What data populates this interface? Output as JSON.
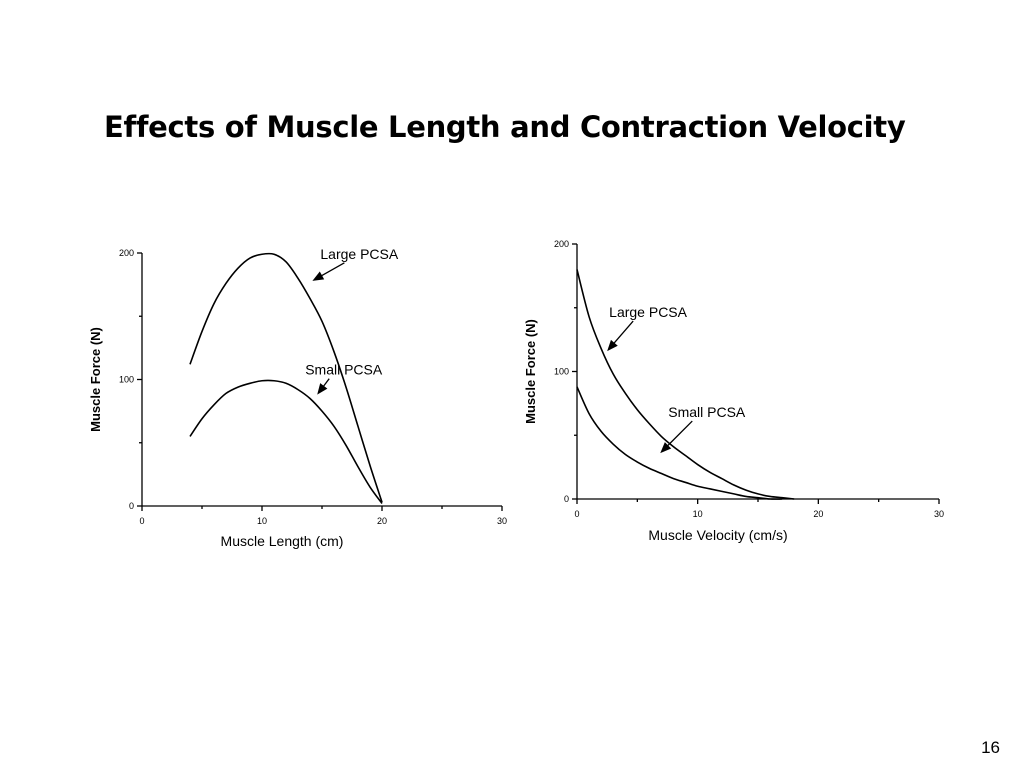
{
  "slide": {
    "title": "Effects of Muscle Length and Contraction Velocity",
    "page_number": "16"
  },
  "chart_data": [
    {
      "type": "line",
      "xlabel": "Muscle Length (cm)",
      "ylabel": "Muscle Force (N)",
      "xlim": [
        0,
        30
      ],
      "ylim": [
        0,
        200
      ],
      "xticks": [
        0,
        10,
        20,
        30
      ],
      "yticks": [
        0,
        100,
        200
      ],
      "grid": false,
      "series": [
        {
          "name": "Large PCSA",
          "x": [
            4,
            5,
            6,
            7,
            8,
            9,
            10,
            11,
            12,
            13,
            14,
            15,
            16,
            17,
            18,
            19,
            20
          ],
          "y": [
            112,
            138,
            160,
            176,
            188,
            196,
            199,
            199,
            193,
            180,
            164,
            146,
            122,
            94,
            63,
            32,
            3
          ]
        },
        {
          "name": "Small PCSA",
          "x": [
            4,
            5,
            6,
            7,
            8,
            9,
            10,
            11,
            12,
            13,
            14,
            15,
            16,
            17,
            18,
            19,
            20
          ],
          "y": [
            55,
            69,
            80,
            89,
            94,
            97,
            99,
            99,
            97,
            92,
            85,
            75,
            63,
            48,
            31,
            15,
            2
          ]
        }
      ],
      "annotations": [
        {
          "text": "Large PCSA",
          "series": "Large PCSA",
          "x": 14.2,
          "y": 178
        },
        {
          "text": "Small PCSA",
          "series": "Small PCSA",
          "x": 14.6,
          "y": 88
        }
      ]
    },
    {
      "type": "line",
      "xlabel": "Muscle Velocity (cm/s)",
      "ylabel": "Muscle Force (N)",
      "xlim": [
        0,
        30
      ],
      "ylim": [
        0,
        200
      ],
      "xticks": [
        0,
        10,
        20,
        30
      ],
      "yticks": [
        0,
        100,
        200
      ],
      "grid": false,
      "series": [
        {
          "name": "Large PCSA",
          "x": [
            0,
            1,
            2,
            3,
            4,
            5,
            6,
            7,
            8,
            9,
            10,
            11,
            12,
            13,
            14,
            15,
            16,
            17,
            18
          ],
          "y": [
            180,
            143,
            118,
            98,
            83,
            70,
            59,
            49,
            41,
            34,
            27,
            21,
            16,
            11,
            7,
            4,
            2,
            1,
            0
          ]
        },
        {
          "name": "Small PCSA",
          "x": [
            0,
            1,
            2,
            3,
            4,
            5,
            6,
            7,
            8,
            9,
            10,
            11,
            12,
            13,
            14,
            15,
            16,
            17
          ],
          "y": [
            88,
            67,
            53,
            43,
            35,
            29,
            24,
            20,
            16,
            13,
            10,
            8,
            6,
            4,
            2,
            1,
            0,
            0
          ]
        }
      ],
      "annotations": [
        {
          "text": "Large PCSA",
          "series": "Large PCSA",
          "x": 2.5,
          "y": 116
        },
        {
          "text": "Small PCSA",
          "series": "Small PCSA",
          "x": 6.9,
          "y": 36
        }
      ]
    }
  ]
}
